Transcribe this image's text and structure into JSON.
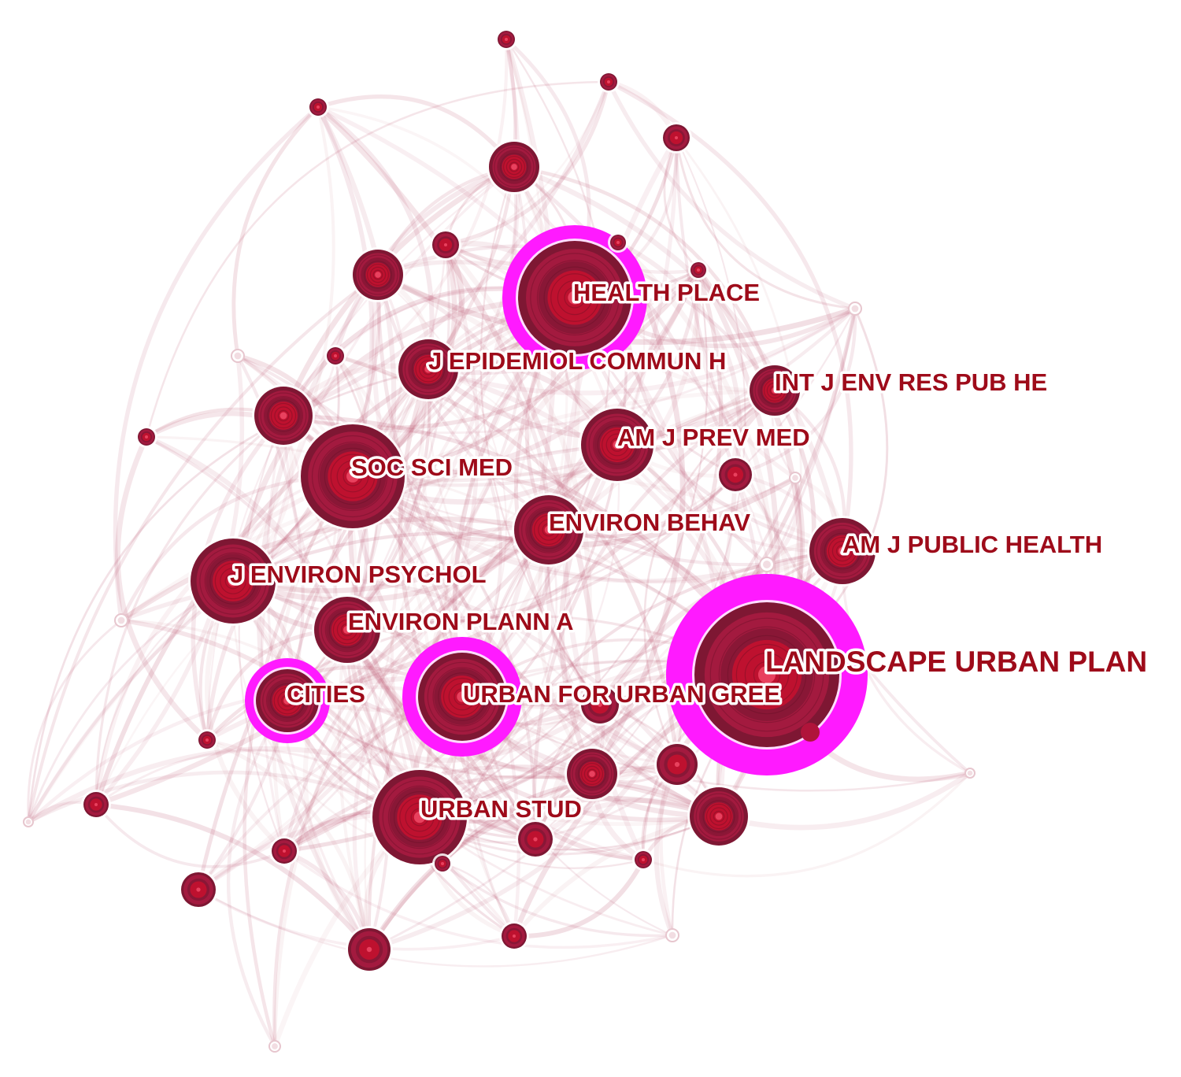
{
  "colors": {
    "node": "#a31a3f",
    "node_dark": "#7e1733",
    "node_core": "#c8102e",
    "burst_ring": "#ff1aff",
    "edge": "#b94e6a",
    "label": "#9e0b1a"
  },
  "labels": [
    "HEALTH PLACE",
    "J EPIDEMIOL COMMUN H",
    "INT J ENV RES PUB HE",
    "AM J PREV MED",
    "SOC SCI MED",
    "ENVIRON BEHAV",
    "AM J PUBLIC HEALTH",
    "J ENVIRON PSYCHOL",
    "ENVIRON PLANN A",
    "LANDSCAPE URBAN PLAN",
    "CITIES",
    "URBAN FOR URBAN GREE",
    "URBAN STUD"
  ]
}
